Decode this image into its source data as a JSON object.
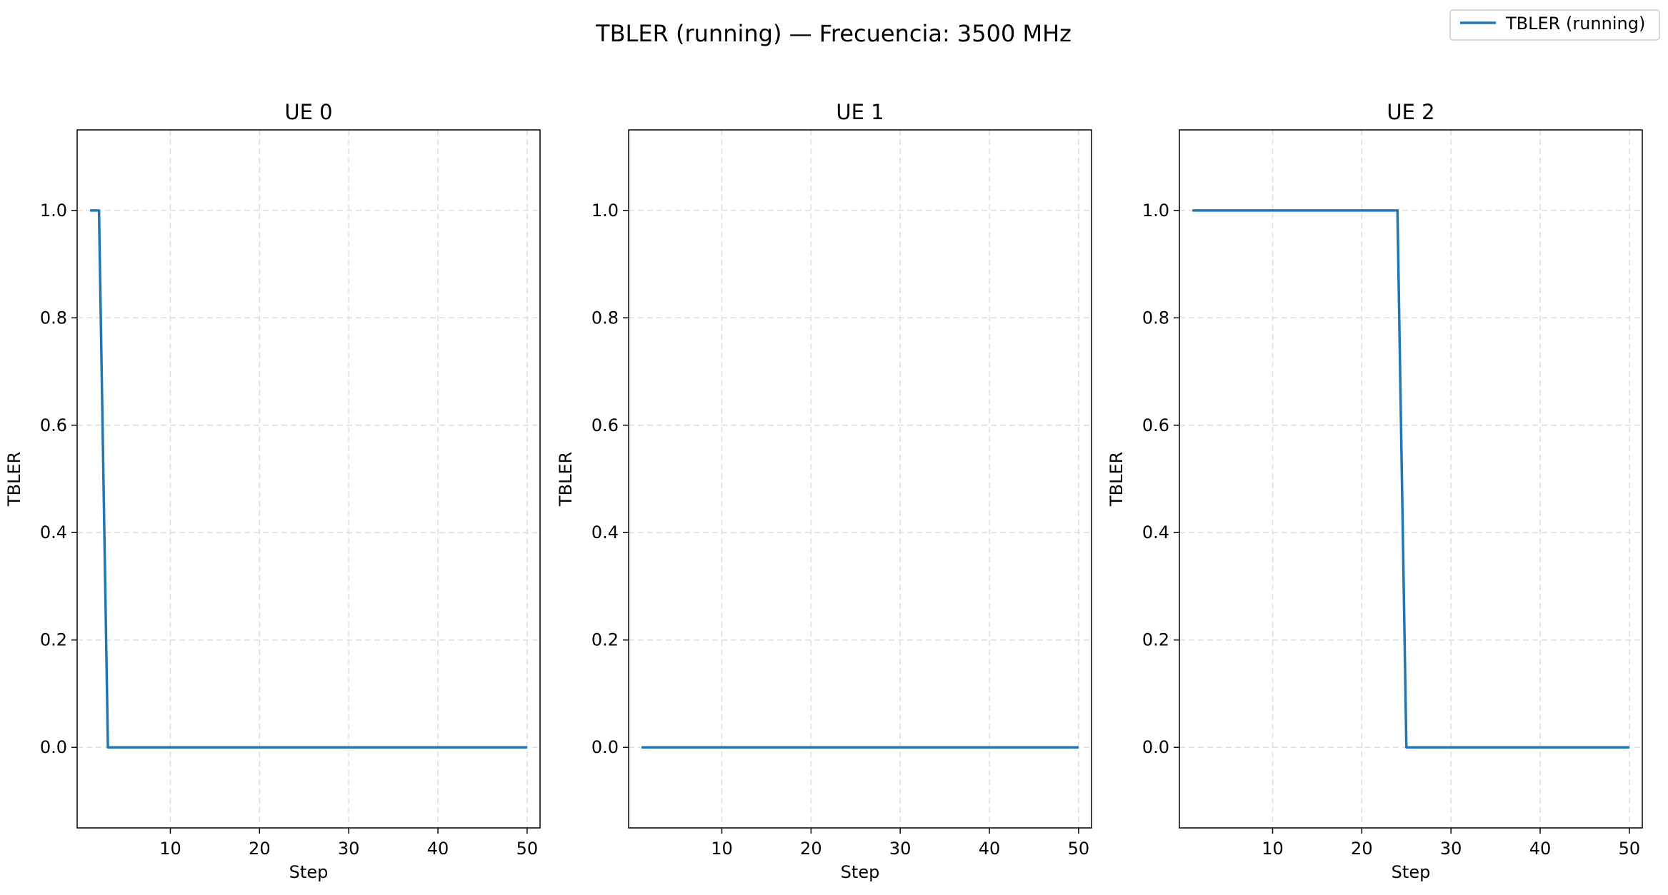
{
  "figure": {
    "suptitle": "TBLER (running) — Frecuencia: 3500 MHz",
    "legend": {
      "label": "TBLER (running)",
      "placement": "top-right",
      "color": "#1f77b4"
    }
  },
  "chart_data": [
    {
      "type": "line",
      "title": "UE 0",
      "xlabel": "Step",
      "ylabel": "TBLER",
      "xlim": [
        -0.45,
        51.45
      ],
      "ylim": [
        -0.15,
        1.15
      ],
      "xticks": [
        10,
        20,
        30,
        40,
        50
      ],
      "yticks": [
        "0.0",
        "0.2",
        "0.4",
        "0.6",
        "0.8",
        "1.0"
      ],
      "grid": true,
      "series": [
        {
          "name": "TBLER (running)",
          "color": "#1f77b4",
          "x": [
            1,
            2,
            3,
            50
          ],
          "y": [
            1.0,
            1.0,
            0.0,
            0.0
          ]
        }
      ]
    },
    {
      "type": "line",
      "title": "UE 1",
      "xlabel": "Step",
      "ylabel": "TBLER",
      "xlim": [
        -0.45,
        51.45
      ],
      "ylim": [
        -0.15,
        1.15
      ],
      "xticks": [
        10,
        20,
        30,
        40,
        50
      ],
      "yticks": [
        "0.0",
        "0.2",
        "0.4",
        "0.6",
        "0.8",
        "1.0"
      ],
      "grid": true,
      "series": [
        {
          "name": "TBLER (running)",
          "color": "#1f77b4",
          "x": [
            1,
            50
          ],
          "y": [
            0.0,
            0.0
          ]
        }
      ]
    },
    {
      "type": "line",
      "title": "UE 2",
      "xlabel": "Step",
      "ylabel": "TBLER",
      "xlim": [
        -0.45,
        51.45
      ],
      "ylim": [
        -0.15,
        1.15
      ],
      "xticks": [
        10,
        20,
        30,
        40,
        50
      ],
      "yticks": [
        "0.0",
        "0.2",
        "0.4",
        "0.6",
        "0.8",
        "1.0"
      ],
      "grid": true,
      "series": [
        {
          "name": "TBLER (running)",
          "color": "#1f77b4",
          "x": [
            1,
            24,
            25,
            50
          ],
          "y": [
            1.0,
            1.0,
            0.0,
            0.0
          ]
        }
      ]
    }
  ]
}
